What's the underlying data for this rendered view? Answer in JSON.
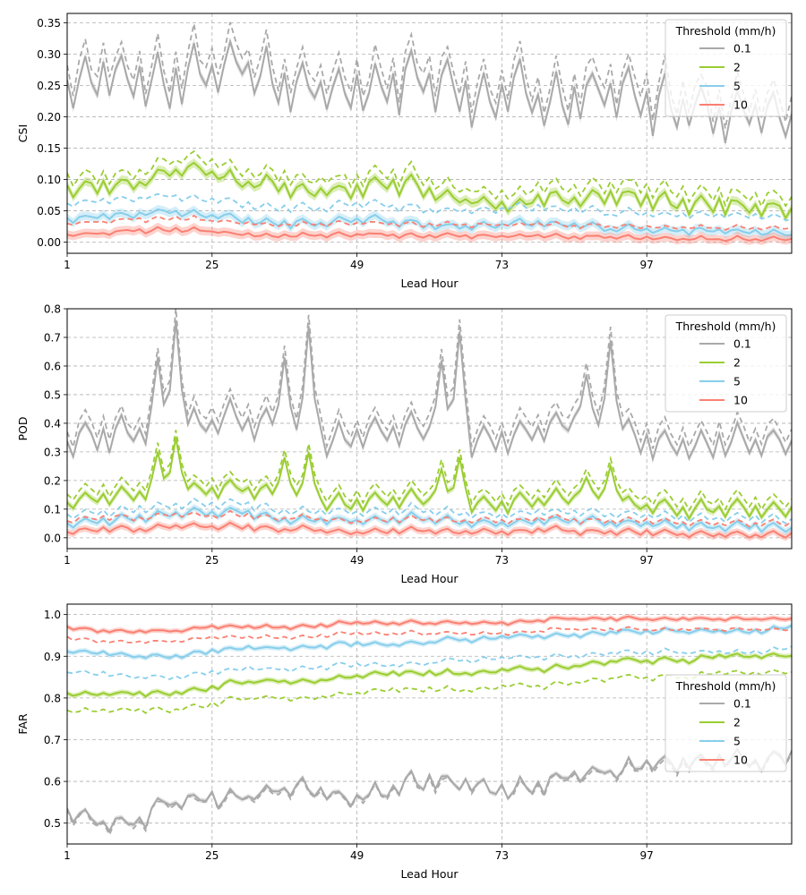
{
  "chart_data": [
    {
      "type": "line",
      "ylabel": "CSI",
      "xlabel": "Lead Hour",
      "xlim": [
        1,
        121
      ],
      "ylim": [
        -0.018,
        0.365
      ],
      "xticks": [
        1,
        25,
        49,
        73,
        97
      ],
      "xtick_labels": [
        "1",
        "25",
        "49",
        "73",
        "97"
      ],
      "yticks": [
        0.0,
        0.05,
        0.1,
        0.15,
        0.2,
        0.25,
        0.3,
        0.35
      ],
      "ytick_labels": [
        "0.00",
        "0.05",
        "0.10",
        "0.15",
        "0.20",
        "0.25",
        "0.30",
        "0.35"
      ],
      "grid": true,
      "legend_placement": "top-right",
      "legend_title": "Threshold (mm/h)",
      "band": 0.007,
      "series": [
        {
          "name": "0.1",
          "color": "#a9a9a9",
          "base": [
            0.24,
            0.27,
            0.26,
            0.25,
            0.27,
            0.29,
            0.25,
            0.25,
            0.24,
            0.24,
            0.26,
            0.25,
            0.22,
            0.25,
            0.22,
            0.23,
            0.24,
            0.22,
            0.22,
            0.2,
            0.21,
            0.2
          ],
          "amp": 0.045,
          "noise": 0.012,
          "dash_offset": 0.025
        },
        {
          "name": "2",
          "color": "#9acd32",
          "base": [
            0.085,
            0.09,
            0.095,
            0.11,
            0.115,
            0.1,
            0.09,
            0.08,
            0.08,
            0.09,
            0.09,
            0.075,
            0.065,
            0.06,
            0.07,
            0.07,
            0.075,
            0.065,
            0.06,
            0.06,
            0.055,
            0.05
          ],
          "amp": 0.012,
          "noise": 0.006,
          "dash_offset": 0.018
        },
        {
          "name": "5",
          "color": "#87ceeb",
          "base": [
            0.035,
            0.04,
            0.045,
            0.05,
            0.045,
            0.035,
            0.03,
            0.03,
            0.035,
            0.035,
            0.03,
            0.025,
            0.025,
            0.03,
            0.03,
            0.025,
            0.02,
            0.02,
            0.018,
            0.018,
            0.015,
            0.012
          ],
          "amp": 0.006,
          "noise": 0.003,
          "dash_offset": 0.025
        },
        {
          "name": "10",
          "color": "#fa8072",
          "base": [
            0.01,
            0.015,
            0.018,
            0.02,
            0.018,
            0.012,
            0.01,
            0.01,
            0.012,
            0.012,
            0.01,
            0.01,
            0.01,
            0.01,
            0.01,
            0.008,
            0.008,
            0.006,
            0.006,
            0.005,
            0.005,
            0.004
          ],
          "amp": 0.003,
          "noise": 0.002,
          "dash_offset": 0.018
        }
      ]
    },
    {
      "type": "line",
      "ylabel": "POD",
      "xlabel": "Lead Hour",
      "xlim": [
        1,
        121
      ],
      "ylim": [
        -0.038,
        0.8
      ],
      "xticks": [
        1,
        25,
        49,
        73,
        97
      ],
      "xtick_labels": [
        "1",
        "25",
        "49",
        "73",
        "97"
      ],
      "yticks": [
        0.0,
        0.1,
        0.2,
        0.3,
        0.4,
        0.5,
        0.6,
        0.7,
        0.8
      ],
      "ytick_labels": [
        "0.0",
        "0.1",
        "0.2",
        "0.3",
        "0.4",
        "0.5",
        "0.6",
        "0.7",
        "0.8"
      ],
      "grid": true,
      "legend_placement": "top-right",
      "legend_title": "Threshold (mm/h)",
      "band": 0.012,
      "series": [
        {
          "name": "0.1",
          "color": "#a9a9a9",
          "base": [
            0.33,
            0.36,
            0.37,
            0.38,
            0.4,
            0.42,
            0.38,
            0.35,
            0.34,
            0.37,
            0.39,
            0.36,
            0.34,
            0.35,
            0.39,
            0.4,
            0.36,
            0.33,
            0.32,
            0.33,
            0.33,
            0.32
          ],
          "amp": 0.06,
          "noise": 0.015,
          "dash_offset": 0.04,
          "peaks": [
            [
              16,
              0.63
            ],
            [
              19,
              0.76
            ],
            [
              37,
              0.63
            ],
            [
              41,
              0.74
            ],
            [
              63,
              0.62
            ],
            [
              66,
              0.72
            ],
            [
              87,
              0.57
            ],
            [
              91,
              0.69
            ]
          ]
        },
        {
          "name": "2",
          "color": "#9acd32",
          "base": [
            0.12,
            0.14,
            0.15,
            0.16,
            0.17,
            0.18,
            0.15,
            0.13,
            0.12,
            0.13,
            0.14,
            0.12,
            0.11,
            0.12,
            0.14,
            0.14,
            0.12,
            0.11,
            0.1,
            0.1,
            0.1,
            0.09
          ],
          "amp": 0.03,
          "noise": 0.008,
          "dash_offset": 0.03,
          "peaks": [
            [
              16,
              0.3
            ],
            [
              19,
              0.35
            ],
            [
              37,
              0.28
            ],
            [
              41,
              0.3
            ],
            [
              63,
              0.24
            ],
            [
              66,
              0.28
            ],
            [
              87,
              0.21
            ],
            [
              91,
              0.25
            ]
          ]
        },
        {
          "name": "5",
          "color": "#87ceeb",
          "base": [
            0.05,
            0.06,
            0.07,
            0.08,
            0.09,
            0.09,
            0.07,
            0.06,
            0.06,
            0.06,
            0.07,
            0.06,
            0.05,
            0.05,
            0.06,
            0.06,
            0.05,
            0.05,
            0.04,
            0.04,
            0.04,
            0.03
          ],
          "amp": 0.015,
          "noise": 0.005,
          "dash_offset": 0.03
        },
        {
          "name": "10",
          "color": "#fa8072",
          "base": [
            0.02,
            0.03,
            0.03,
            0.04,
            0.04,
            0.04,
            0.03,
            0.03,
            0.02,
            0.02,
            0.03,
            0.02,
            0.02,
            0.02,
            0.03,
            0.02,
            0.02,
            0.02,
            0.01,
            0.01,
            0.01,
            0.01
          ],
          "amp": 0.01,
          "noise": 0.004,
          "dash_offset": 0.04
        }
      ]
    },
    {
      "type": "line",
      "ylabel": "FAR",
      "xlabel": "Lead Hour",
      "xlim": [
        1,
        121
      ],
      "ylim": [
        0.45,
        1.025
      ],
      "xticks": [
        1,
        25,
        49,
        73,
        97
      ],
      "xtick_labels": [
        "1",
        "25",
        "49",
        "73",
        "97"
      ],
      "yticks": [
        0.5,
        0.6,
        0.7,
        0.8,
        0.9,
        1.0
      ],
      "ytick_labels": [
        "0.5",
        "0.6",
        "0.7",
        "0.8",
        "0.9",
        "1.0"
      ],
      "grid": true,
      "legend_placement": "center-right",
      "legend_title": "Threshold (mm/h)",
      "band": 0.006,
      "series": [
        {
          "name": "0.1",
          "color": "#a9a9a9",
          "base": [
            0.53,
            0.5,
            0.5,
            0.55,
            0.56,
            0.56,
            0.58,
            0.58,
            0.56,
            0.57,
            0.6,
            0.6,
            0.58,
            0.58,
            0.6,
            0.62,
            0.63,
            0.64,
            0.64,
            0.66,
            0.65,
            0.66
          ],
          "amp": 0.02,
          "noise": 0.01,
          "dash_offset": -0.004
        },
        {
          "name": "2",
          "color": "#9acd32",
          "base": [
            0.81,
            0.81,
            0.81,
            0.81,
            0.82,
            0.84,
            0.84,
            0.84,
            0.85,
            0.86,
            0.86,
            0.86,
            0.86,
            0.87,
            0.87,
            0.88,
            0.89,
            0.89,
            0.89,
            0.9,
            0.9,
            0.9
          ],
          "amp": 0.006,
          "noise": 0.003,
          "dash_offset": -0.04
        },
        {
          "name": "5",
          "color": "#87ceeb",
          "base": [
            0.91,
            0.91,
            0.9,
            0.9,
            0.91,
            0.92,
            0.92,
            0.92,
            0.93,
            0.93,
            0.93,
            0.94,
            0.94,
            0.95,
            0.95,
            0.95,
            0.96,
            0.96,
            0.96,
            0.96,
            0.96,
            0.97
          ],
          "amp": 0.005,
          "noise": 0.003,
          "dash_offset": -0.05
        },
        {
          "name": "10",
          "color": "#fa8072",
          "base": [
            0.97,
            0.96,
            0.96,
            0.96,
            0.97,
            0.97,
            0.97,
            0.97,
            0.98,
            0.98,
            0.98,
            0.98,
            0.98,
            0.98,
            0.99,
            0.99,
            0.99,
            0.99,
            0.99,
            0.99,
            0.99,
            0.99
          ],
          "amp": 0.004,
          "noise": 0.002,
          "dash_offset": -0.025
        }
      ]
    }
  ]
}
